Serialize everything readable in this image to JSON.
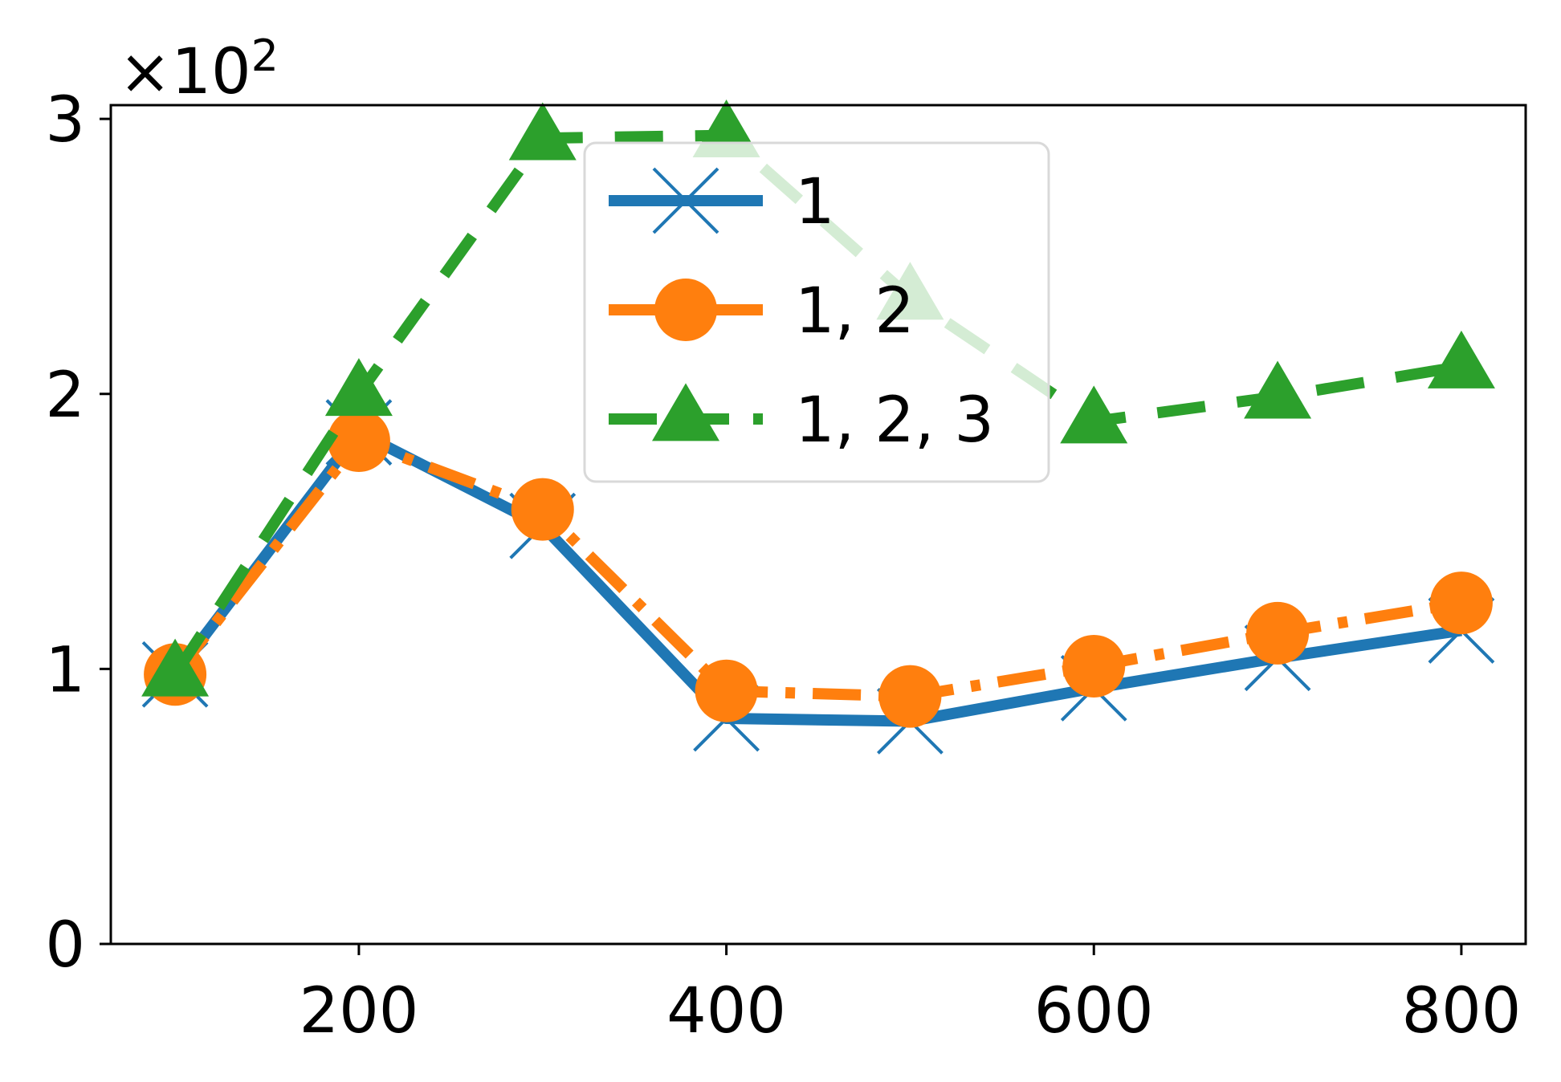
{
  "chart_data": {
    "type": "line",
    "title": "",
    "xlabel": "",
    "ylabel": "",
    "y_offset_text": "×10",
    "y_offset_exponent": "2",
    "xlim": [
      65,
      835
    ],
    "ylim": [
      0,
      3.05
    ],
    "x_ticks": [
      200,
      400,
      600,
      800
    ],
    "x_tick_labels": [
      "200",
      "400",
      "600",
      "800"
    ],
    "y_ticks": [
      0,
      1,
      2,
      3
    ],
    "y_tick_labels": [
      "0",
      "1",
      "2",
      "3"
    ],
    "grid": false,
    "legend_position": "upper center",
    "x": [
      100,
      200,
      300,
      400,
      500,
      600,
      700,
      800
    ],
    "series": [
      {
        "name": "1",
        "color": "#1f77b4",
        "marker": "x",
        "linestyle": "solid",
        "values": [
          0.98,
          1.86,
          1.52,
          0.82,
          0.81,
          0.93,
          1.04,
          1.14
        ]
      },
      {
        "name": "1, 2",
        "color": "#ff7f0e",
        "marker": "circle",
        "linestyle": "dashdot",
        "values": [
          0.98,
          1.83,
          1.58,
          0.92,
          0.9,
          1.01,
          1.13,
          1.24
        ]
      },
      {
        "name": "1, 2, 3",
        "color": "#2ca02c",
        "marker": "triangle",
        "linestyle": "dashed",
        "values": [
          0.98,
          2.0,
          2.93,
          2.94,
          2.35,
          1.9,
          1.99,
          2.1
        ]
      }
    ]
  }
}
